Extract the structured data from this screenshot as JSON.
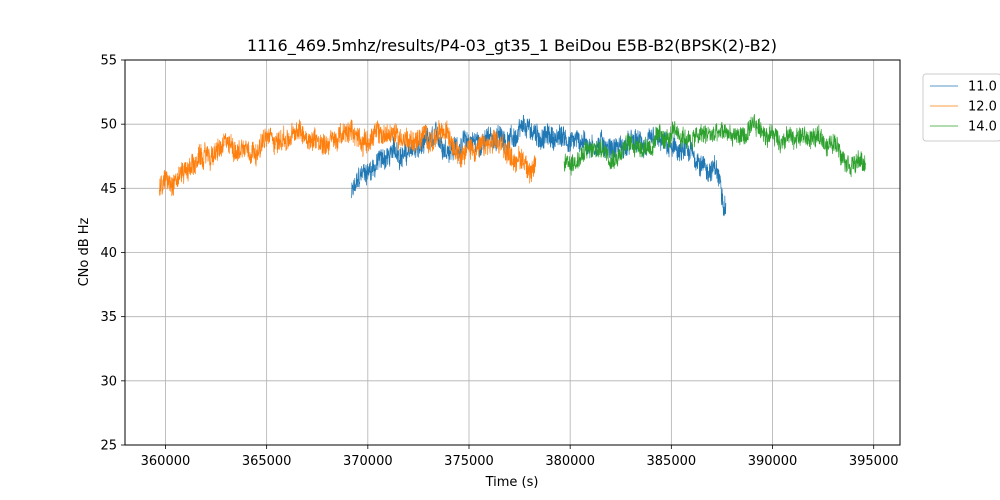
{
  "chart_data": {
    "type": "line",
    "title": "1116_469.5mhz/results/P4-03_gt35_1 BeiDou E5B-B2(BPSK(2)-B2)",
    "xlabel": "Time (s)",
    "ylabel": "CNo dB Hz",
    "xlim": [
      358000,
      396300
    ],
    "ylim": [
      25,
      55
    ],
    "xticks": [
      360000,
      365000,
      370000,
      375000,
      380000,
      385000,
      390000,
      395000
    ],
    "xtick_labels": [
      "360000",
      "365000",
      "370000",
      "375000",
      "380000",
      "385000",
      "390000",
      "395000"
    ],
    "yticks": [
      25,
      30,
      35,
      40,
      45,
      50,
      55
    ],
    "ytick_labels": [
      "25",
      "30",
      "35",
      "40",
      "45",
      "50",
      "55"
    ],
    "grid": true,
    "legend_position": "outside-top-right",
    "series": [
      {
        "name": "11.0",
        "color": "#1f77b4",
        "x": [
          369200,
          369800,
          370500,
          371500,
          372500,
          373500,
          374500,
          375500,
          376500,
          377500,
          378500,
          379500,
          380500,
          381500,
          382500,
          383500,
          384500,
          385500,
          386500,
          387200,
          387700
        ],
        "values": [
          44.5,
          46.0,
          47.2,
          47.8,
          48.0,
          48.3,
          48.5,
          48.7,
          48.9,
          49.0,
          49.0,
          48.9,
          48.8,
          48.6,
          48.4,
          48.2,
          47.9,
          47.5,
          47.0,
          46.3,
          44.0
        ],
        "noise": 0.8
      },
      {
        "name": "12.0",
        "color": "#ff7f0e",
        "x": [
          359700,
          360300,
          361000,
          362000,
          363000,
          364000,
          365000,
          366000,
          367000,
          368000,
          369000,
          370000,
          371000,
          372000,
          373000,
          374000,
          375000,
          376000,
          377000,
          377800,
          378300
        ],
        "values": [
          45.0,
          46.0,
          46.8,
          47.4,
          48.0,
          48.5,
          48.8,
          48.9,
          49.0,
          49.0,
          49.0,
          49.1,
          49.1,
          49.0,
          48.9,
          48.8,
          48.5,
          48.2,
          47.7,
          47.2,
          46.5
        ],
        "noise": 0.8
      },
      {
        "name": "14.0",
        "color": "#2ca02c",
        "x": [
          379700,
          380300,
          381000,
          382000,
          383000,
          384000,
          385000,
          386000,
          387000,
          388000,
          389000,
          390000,
          391000,
          392000,
          393000,
          394000,
          394600
        ],
        "values": [
          46.8,
          47.5,
          47.9,
          48.2,
          48.5,
          48.7,
          48.8,
          48.9,
          49.0,
          49.1,
          49.2,
          49.3,
          49.2,
          48.9,
          48.5,
          47.7,
          46.8
        ],
        "noise": 0.7
      }
    ]
  }
}
